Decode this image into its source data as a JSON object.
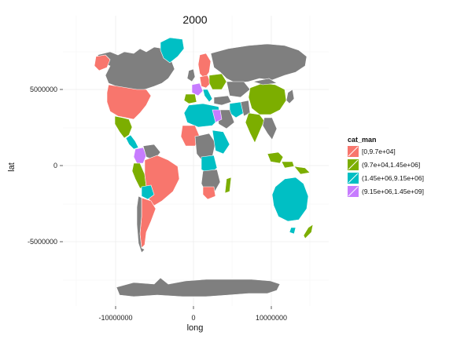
{
  "title": "2000",
  "axes": {
    "xlabel": "long",
    "ylabel": "lat",
    "xticks": [
      "-10000000",
      "0",
      "10000000"
    ],
    "yticks": [
      "5000000",
      "0",
      "-5000000"
    ]
  },
  "legend": {
    "title": "cat_man",
    "entries": [
      {
        "label": "[0,9.7e+04]",
        "color": "#F8766D"
      },
      {
        "label": "(9.7e+04,1.45e+06]",
        "color": "#7CAE00"
      },
      {
        "label": "(1.45e+06,9.15e+06]",
        "color": "#00BFC4"
      },
      {
        "label": "(9.15e+06,1.45e+09]",
        "color": "#C77CFF"
      }
    ]
  },
  "colors": {
    "na": "#7F7F7F",
    "cat1": "#F8766D",
    "cat2": "#7CAE00",
    "cat3": "#00BFC4",
    "cat4": "#C77CFF"
  },
  "chart_data": {
    "type": "choropleth map",
    "xlabel": "long",
    "ylabel": "lat",
    "fill_variable": "cat_man",
    "categories": [
      "[0,9.7e+04]",
      "(9.7e+04,1.45e+06]",
      "(1.45e+06,9.15e+06]",
      "(9.15e+06,1.45e+09]"
    ],
    "no_data_color": "#7F7F7F",
    "grid": true
  }
}
